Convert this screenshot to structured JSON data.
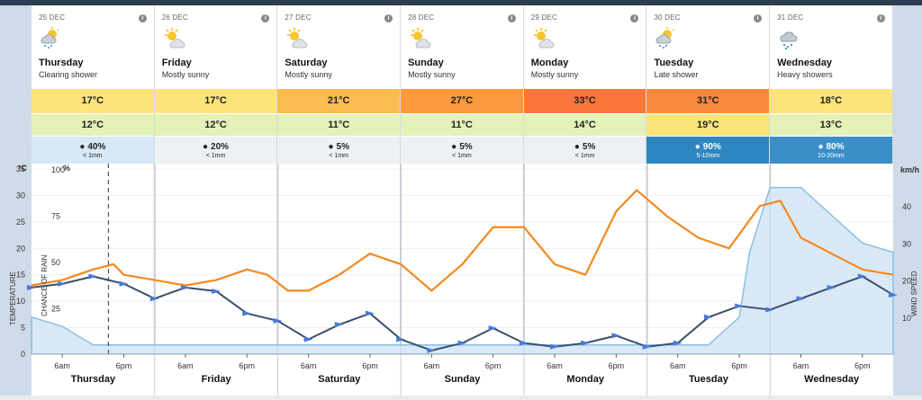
{
  "days": [
    {
      "date": "25 DEC",
      "name": "Thursday",
      "desc": "Clearing shower",
      "icon": "sun-cloud-rain-icon",
      "max": "17°C",
      "min": "12°C",
      "rain_pct": "40%",
      "rain_amt": "< 1mm",
      "max_color": "#fde47a",
      "min_color": "#e3f2b7",
      "rain_color": "#d8e8f5",
      "rain_text": "#222"
    },
    {
      "date": "26 DEC",
      "name": "Friday",
      "desc": "Mostly sunny",
      "icon": "sun-cloud-icon",
      "max": "17°C",
      "min": "12°C",
      "rain_pct": "20%",
      "rain_amt": "< 1mm",
      "max_color": "#fde47a",
      "min_color": "#e3f2b7",
      "rain_color": "#eef1f4",
      "rain_text": "#222"
    },
    {
      "date": "27 DEC",
      "name": "Saturday",
      "desc": "Mostly sunny",
      "icon": "sun-cloud-icon",
      "max": "21°C",
      "min": "11°C",
      "rain_pct": "5%",
      "rain_amt": "< 1mm",
      "max_color": "#fbbd52",
      "min_color": "#e3f2b7",
      "rain_color": "#eef1f4",
      "rain_text": "#222"
    },
    {
      "date": "28 DEC",
      "name": "Sunday",
      "desc": "Mostly sunny",
      "icon": "sun-cloud-icon",
      "max": "27°C",
      "min": "11°C",
      "rain_pct": "5%",
      "rain_amt": "< 1mm",
      "max_color": "#fb9a3e",
      "min_color": "#e3f2b7",
      "rain_color": "#eef1f4",
      "rain_text": "#222"
    },
    {
      "date": "29 DEC",
      "name": "Monday",
      "desc": "Mostly sunny",
      "icon": "sun-cloud-icon",
      "max": "33°C",
      "min": "14°C",
      "rain_pct": "5%",
      "rain_amt": "< 1mm",
      "max_color": "#f9773a",
      "min_color": "#e3f2b7",
      "rain_color": "#eef1f4",
      "rain_text": "#222"
    },
    {
      "date": "30 DEC",
      "name": "Tuesday",
      "desc": "Late shower",
      "icon": "sun-cloud-rain-icon",
      "max": "31°C",
      "min": "19°C",
      "rain_pct": "90%",
      "rain_amt": "5-10mm",
      "max_color": "#fa8940",
      "min_color": "#fde47a",
      "rain_color": "#2e86c1",
      "rain_text": "#fff"
    },
    {
      "date": "31 DEC",
      "name": "Wednesday",
      "desc": "Heavy showers",
      "icon": "cloud-rain-icon",
      "max": "18°C",
      "min": "13°C",
      "rain_pct": "80%",
      "rain_amt": "10-20mm",
      "max_color": "#fde47a",
      "min_color": "#e3f2b7",
      "rain_color": "#3a8fc9",
      "rain_text": "#fff"
    }
  ],
  "chart": {
    "temp_unit": "°C",
    "temp_label": "TEMPERATURE",
    "rain_unit": "%",
    "rain_label": "CHANCE OF RAIN",
    "wind_unit": "km/h",
    "wind_label": "WIND SPEED",
    "temp_ticks": [
      "35",
      "30",
      "25",
      "20",
      "15",
      "10",
      "5",
      "0"
    ],
    "rain_ticks": [
      "100",
      "75",
      "50",
      "25"
    ],
    "wind_ticks": [
      "40",
      "30",
      "20",
      "10"
    ],
    "hour_labels": [
      "6am",
      "6pm"
    ]
  },
  "chart_data": {
    "type": "line",
    "title": "",
    "x_unit": "hours from Thursday 00:00",
    "xlim": [
      0,
      168
    ],
    "ylim_temp": [
      0,
      35
    ],
    "ylim_wind": [
      0,
      50
    ],
    "ylim_rain": [
      0,
      100
    ],
    "series": [
      {
        "name": "Temperature",
        "axis": "temp",
        "color": "#f5891f",
        "points": [
          [
            0,
            13
          ],
          [
            6,
            14
          ],
          [
            12,
            16
          ],
          [
            16,
            17
          ],
          [
            18,
            15
          ],
          [
            24,
            14
          ],
          [
            30,
            13
          ],
          [
            36,
            14
          ],
          [
            42,
            16
          ],
          [
            46,
            15
          ],
          [
            50,
            12
          ],
          [
            54,
            12
          ],
          [
            60,
            15
          ],
          [
            66,
            19
          ],
          [
            72,
            17
          ],
          [
            78,
            12
          ],
          [
            84,
            17
          ],
          [
            90,
            24
          ],
          [
            96,
            24
          ],
          [
            102,
            17
          ],
          [
            108,
            15
          ],
          [
            114,
            27
          ],
          [
            118,
            31
          ],
          [
            124,
            26
          ],
          [
            130,
            22
          ],
          [
            136,
            20
          ],
          [
            142,
            28
          ],
          [
            146,
            29
          ],
          [
            150,
            22
          ],
          [
            156,
            19
          ],
          [
            162,
            16
          ],
          [
            168,
            15
          ]
        ]
      },
      {
        "name": "Wind speed",
        "axis": "wind",
        "color": "#3a5069",
        "points": [
          [
            0,
            18
          ],
          [
            6,
            19
          ],
          [
            12,
            21
          ],
          [
            18,
            19
          ],
          [
            24,
            15
          ],
          [
            30,
            18
          ],
          [
            36,
            17
          ],
          [
            42,
            11
          ],
          [
            48,
            9
          ],
          [
            54,
            4
          ],
          [
            60,
            8
          ],
          [
            66,
            11
          ],
          [
            72,
            4
          ],
          [
            78,
            1
          ],
          [
            84,
            3
          ],
          [
            90,
            7
          ],
          [
            96,
            3
          ],
          [
            102,
            2
          ],
          [
            108,
            3
          ],
          [
            114,
            5
          ],
          [
            120,
            2
          ],
          [
            126,
            3
          ],
          [
            132,
            10
          ],
          [
            138,
            13
          ],
          [
            144,
            12
          ],
          [
            150,
            15
          ],
          [
            156,
            18
          ],
          [
            162,
            21
          ],
          [
            168,
            16
          ]
        ]
      },
      {
        "name": "Chance of rain",
        "axis": "rain",
        "color": "#8cbfe3",
        "points": [
          [
            0,
            20
          ],
          [
            6,
            15
          ],
          [
            12,
            5
          ],
          [
            24,
            5
          ],
          [
            36,
            5
          ],
          [
            48,
            5
          ],
          [
            60,
            5
          ],
          [
            72,
            5
          ],
          [
            84,
            5
          ],
          [
            96,
            5
          ],
          [
            108,
            5
          ],
          [
            120,
            5
          ],
          [
            132,
            5
          ],
          [
            138,
            20
          ],
          [
            140,
            55
          ],
          [
            144,
            90
          ],
          [
            150,
            90
          ],
          [
            156,
            75
          ],
          [
            162,
            60
          ],
          [
            168,
            55
          ]
        ]
      }
    ]
  }
}
